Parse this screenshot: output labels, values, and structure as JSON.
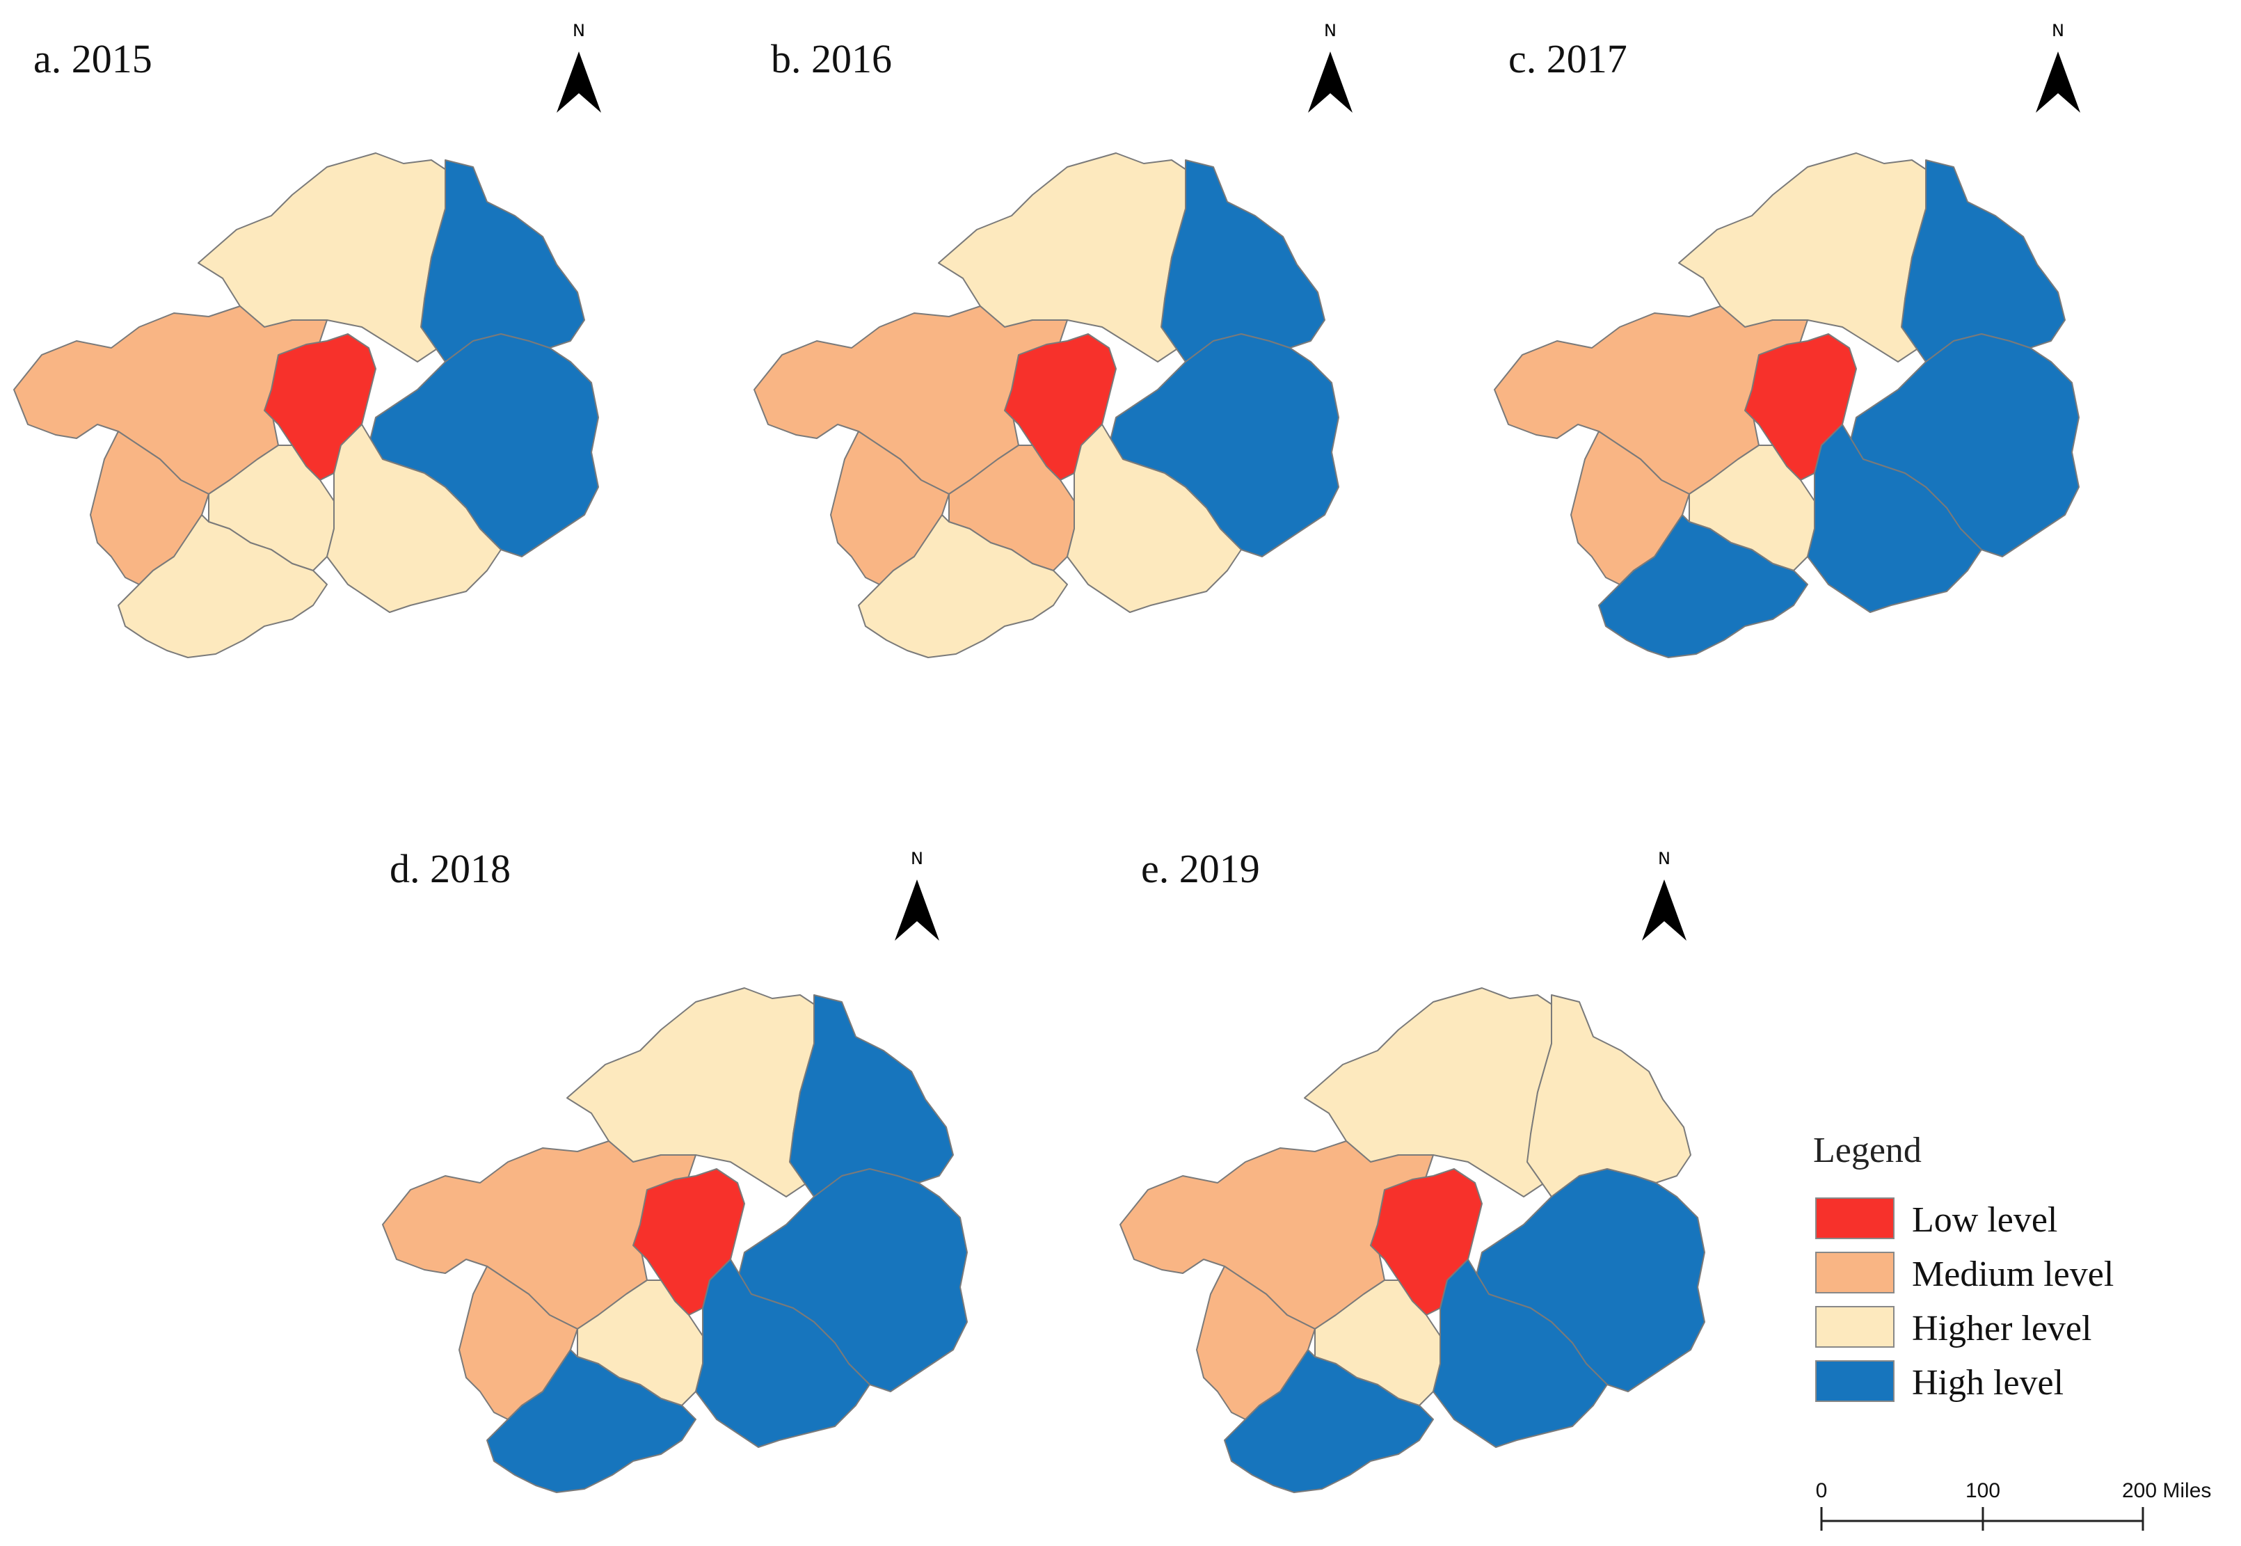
{
  "panels": [
    {
      "title": "a. 2015",
      "regions": {
        "northwest": "Higher level",
        "west": "Medium level",
        "southwest": "Medium level",
        "central": "Low level",
        "south_central": "Higher level",
        "southeast_south": "Higher level",
        "south_tip": "Higher level",
        "northeast": "High level",
        "east": "High level"
      }
    },
    {
      "title": "b. 2016",
      "regions": {
        "northwest": "Higher level",
        "west": "Medium level",
        "southwest": "Medium level",
        "central": "Low level",
        "south_central": "Medium level",
        "southeast_south": "Higher level",
        "south_tip": "Higher level",
        "northeast": "High level",
        "east": "High level"
      }
    },
    {
      "title": "c. 2017",
      "regions": {
        "northwest": "Higher level",
        "west": "Medium level",
        "southwest": "Medium level",
        "central": "Low level",
        "south_central": "Higher level",
        "southeast_south": "High level",
        "south_tip": "High level",
        "northeast": "High level",
        "east": "High level"
      }
    },
    {
      "title": "d. 2018",
      "regions": {
        "northwest": "Higher level",
        "west": "Medium level",
        "southwest": "Medium level",
        "central": "Low level",
        "south_central": "Higher level",
        "southeast_south": "High level",
        "south_tip": "High level",
        "northeast": "High level",
        "east": "High level"
      }
    },
    {
      "title": "e. 2019",
      "regions": {
        "northwest": "Higher level",
        "west": "Medium level",
        "southwest": "Medium level",
        "central": "Low level",
        "south_central": "Higher level",
        "southeast_south": "High level",
        "south_tip": "High level",
        "northeast": "Higher level",
        "east": "High level"
      }
    }
  ],
  "north_label": "N",
  "legend": {
    "title": "Legend",
    "items": [
      {
        "label": "Low level",
        "color": "#f7312b"
      },
      {
        "label": "Medium level",
        "color": "#f9b584"
      },
      {
        "label": "Higher level",
        "color": "#fde9be"
      },
      {
        "label": "High level",
        "color": "#1775bd"
      }
    ]
  },
  "scale_bar": {
    "ticks": [
      "0",
      "100",
      "200 Miles"
    ]
  }
}
